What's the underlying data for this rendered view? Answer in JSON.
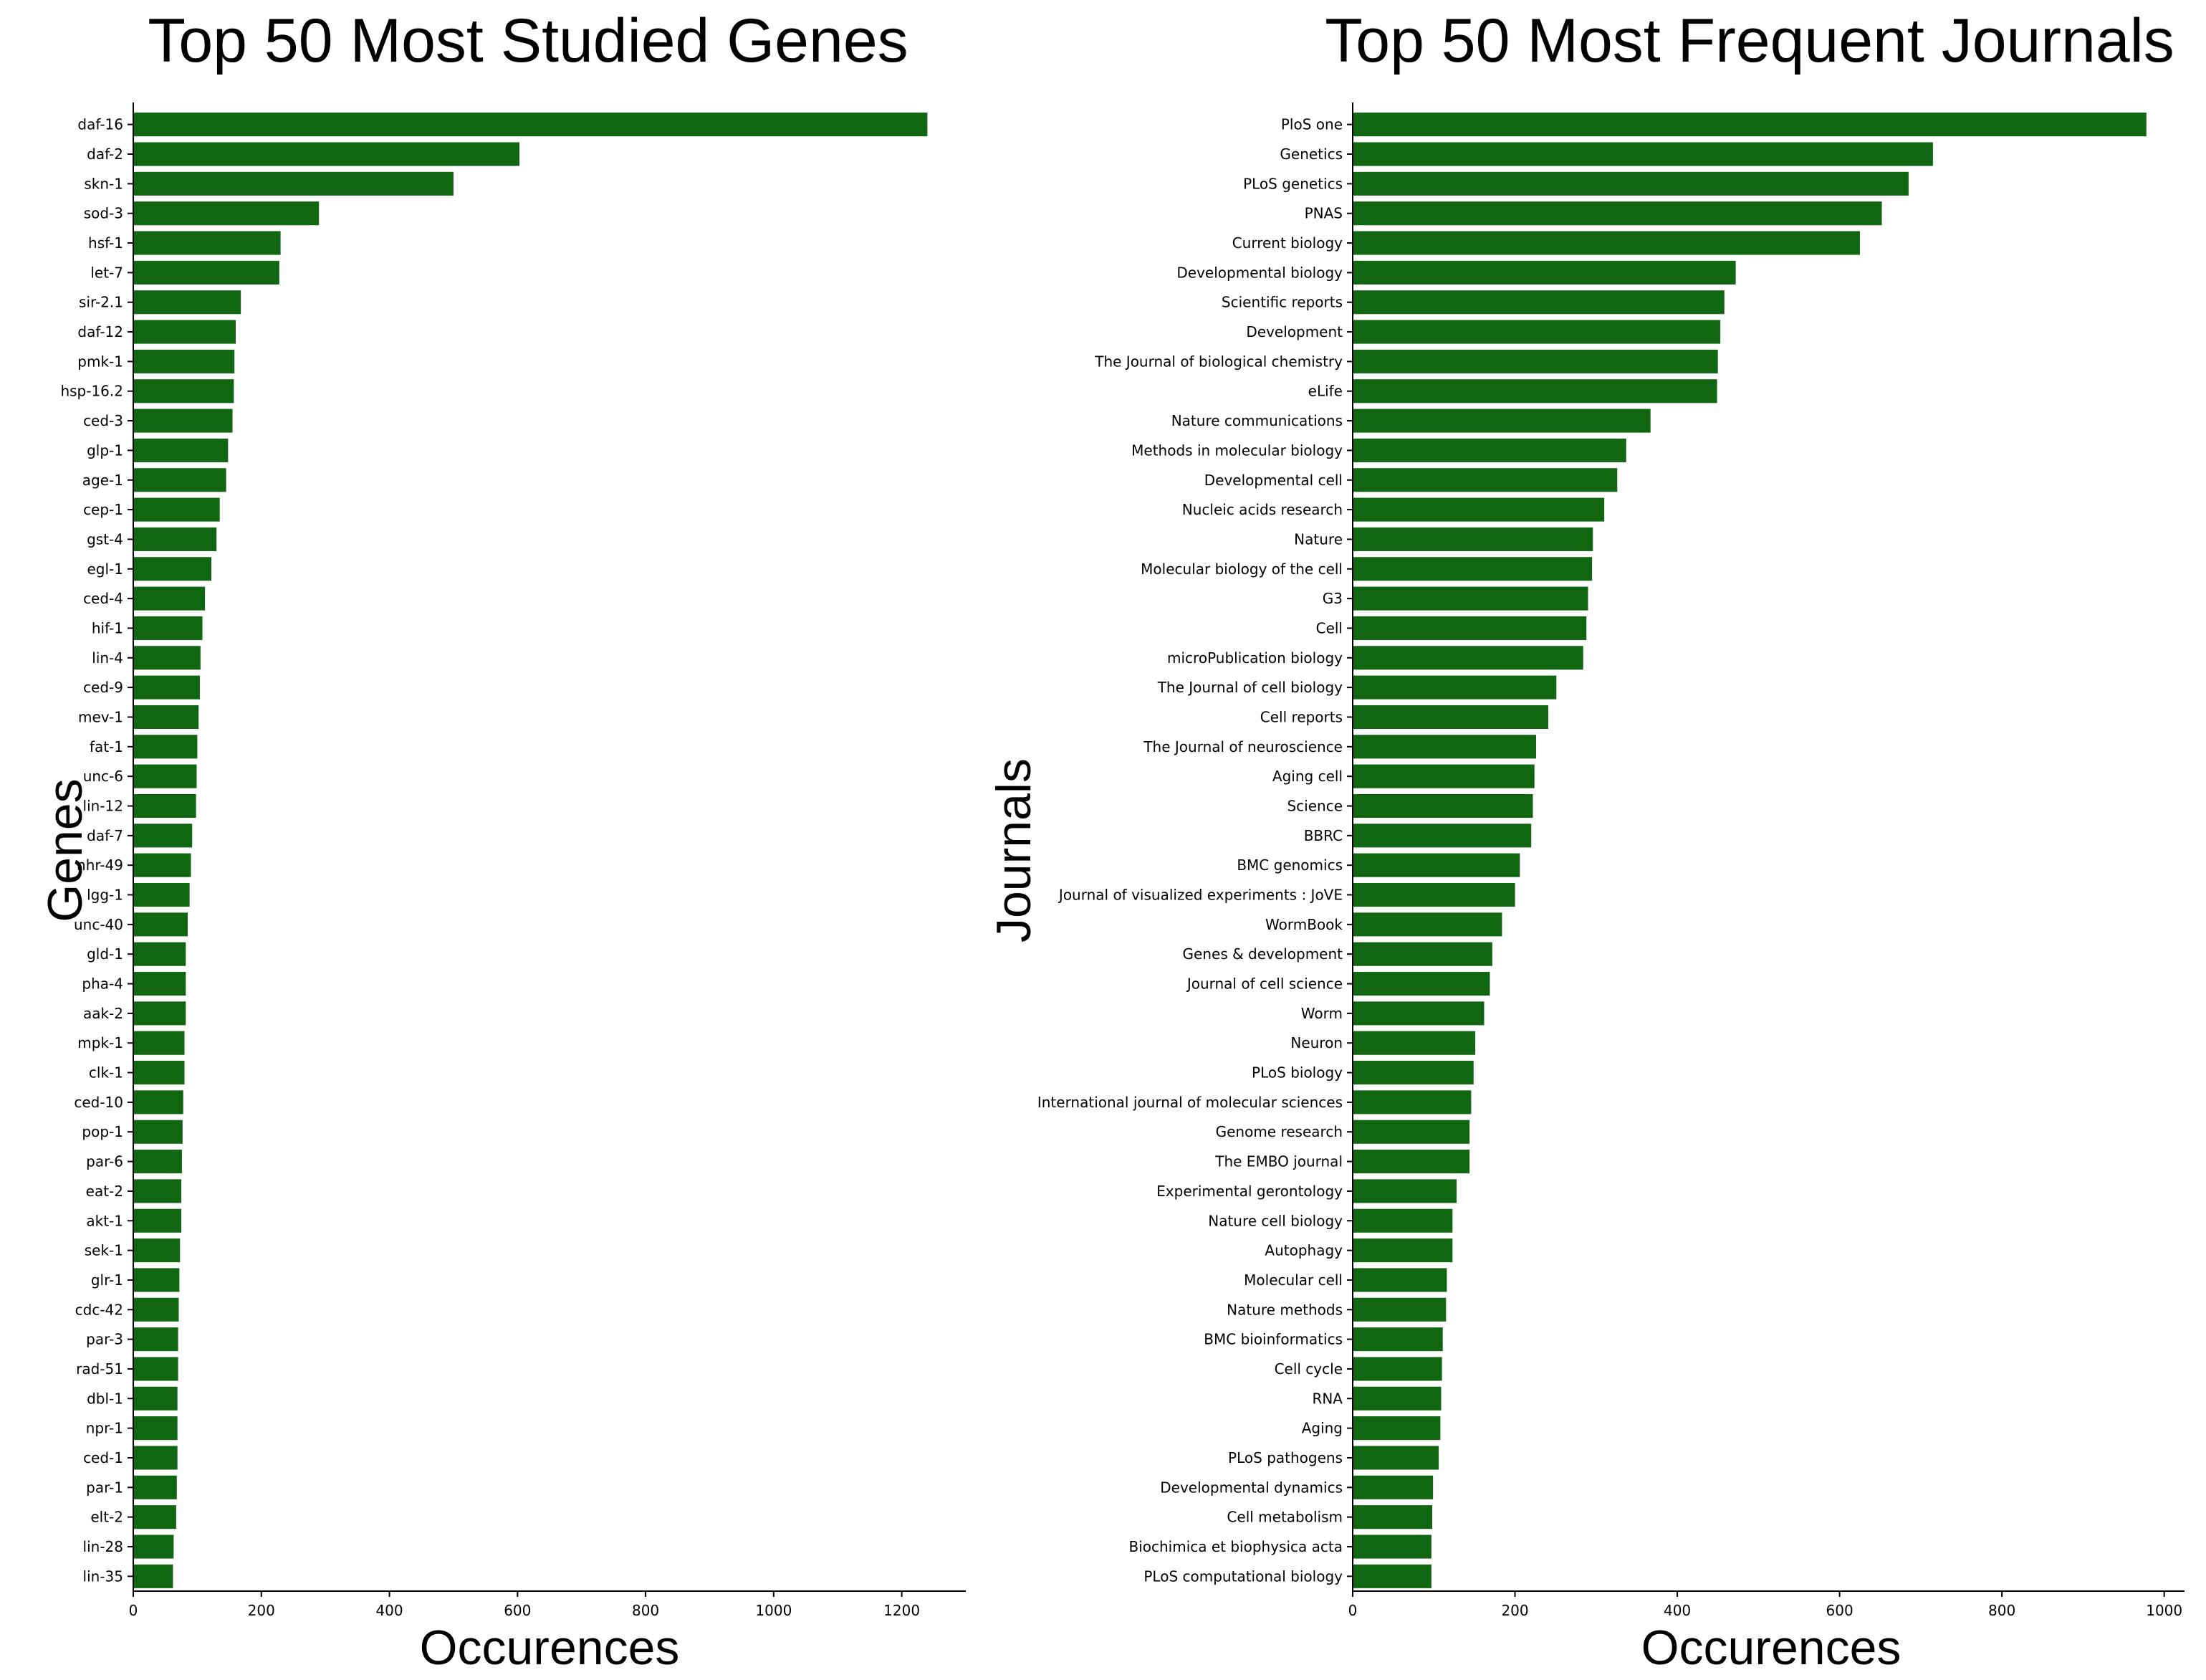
{
  "chart_data": [
    {
      "type": "bar",
      "orientation": "horizontal",
      "title": "Top 50 Most Studied Genes",
      "xlabel": "Occurences",
      "ylabel": "Genes",
      "xlim": [
        0,
        1300
      ],
      "xticks": [
        "0",
        "200",
        "400",
        "600",
        "800",
        "1000",
        "1200"
      ],
      "grid": false,
      "bar_color": "#116611",
      "categories": [
        "daf-16",
        "daf-2",
        "skn-1",
        "sod-3",
        "hsf-1",
        "let-7",
        "sir-2.1",
        "daf-12",
        "pmk-1",
        "hsp-16.2",
        "ced-3",
        "glp-1",
        "age-1",
        "cep-1",
        "gst-4",
        "egl-1",
        "ced-4",
        "hif-1",
        "lin-4",
        "ced-9",
        "mev-1",
        "fat-1",
        "unc-6",
        "lin-12",
        "daf-7",
        "nhr-49",
        "lgg-1",
        "unc-40",
        "gld-1",
        "pha-4",
        "aak-2",
        "mpk-1",
        "clk-1",
        "ced-10",
        "pop-1",
        "par-6",
        "eat-2",
        "akt-1",
        "sek-1",
        "glr-1",
        "cdc-42",
        "par-3",
        "rad-51",
        "dbl-1",
        "npr-1",
        "ced-1",
        "par-1",
        "elt-2",
        "lin-28",
        "lin-35"
      ],
      "values": [
        1240,
        603,
        500,
        290,
        230,
        228,
        168,
        160,
        158,
        157,
        155,
        148,
        145,
        135,
        130,
        122,
        112,
        108,
        105,
        104,
        102,
        100,
        99,
        98,
        92,
        90,
        88,
        85,
        82,
        82,
        82,
        80,
        80,
        78,
        77,
        76,
        75,
        75,
        73,
        72,
        71,
        70,
        70,
        69,
        69,
        69,
        68,
        67,
        63,
        62
      ]
    },
    {
      "type": "bar",
      "orientation": "horizontal",
      "title": "Top 50 Most Frequent Journals",
      "xlabel": "Occurences",
      "ylabel": "Journals",
      "xlim": [
        0,
        1025
      ],
      "xticks": [
        "0",
        "200",
        "400",
        "600",
        "800",
        "1000"
      ],
      "grid": false,
      "bar_color": "#116611",
      "categories": [
        "PloS one",
        "Genetics",
        "PLoS genetics",
        "PNAS",
        "Current biology",
        "Developmental biology",
        "Scientific reports",
        "Development",
        "The Journal of biological chemistry",
        "eLife",
        "Nature communications",
        "Methods in molecular biology",
        "Developmental cell",
        "Nucleic acids research",
        "Nature",
        "Molecular biology of the cell",
        "G3",
        "Cell",
        "microPublication biology",
        "The Journal of cell biology",
        "Cell reports",
        "The Journal of neuroscience",
        "Aging cell",
        "Science",
        "BBRC",
        "BMC genomics",
        "Journal of visualized experiments : JoVE",
        "WormBook",
        "Genes & development",
        "Journal of cell science",
        "Worm",
        "Neuron",
        "PLoS biology",
        "International journal of molecular sciences",
        "Genome research",
        "The EMBO journal",
        "Experimental gerontology",
        "Nature cell biology",
        "Autophagy",
        "Molecular cell",
        "Nature methods",
        "BMC bioinformatics",
        "Cell cycle",
        "RNA",
        "Aging",
        "PLoS pathogens",
        "Developmental dynamics",
        "Cell metabolism",
        "Biochimica et biophysica acta",
        "PLoS computational biology"
      ],
      "values": [
        978,
        715,
        685,
        652,
        625,
        472,
        458,
        453,
        450,
        449,
        367,
        337,
        326,
        310,
        296,
        295,
        290,
        288,
        284,
        251,
        241,
        226,
        224,
        222,
        220,
        206,
        200,
        184,
        172,
        169,
        162,
        151,
        149,
        146,
        144,
        144,
        128,
        123,
        123,
        116,
        115,
        111,
        110,
        109,
        108,
        106,
        99,
        98,
        97,
        97
      ]
    }
  ]
}
